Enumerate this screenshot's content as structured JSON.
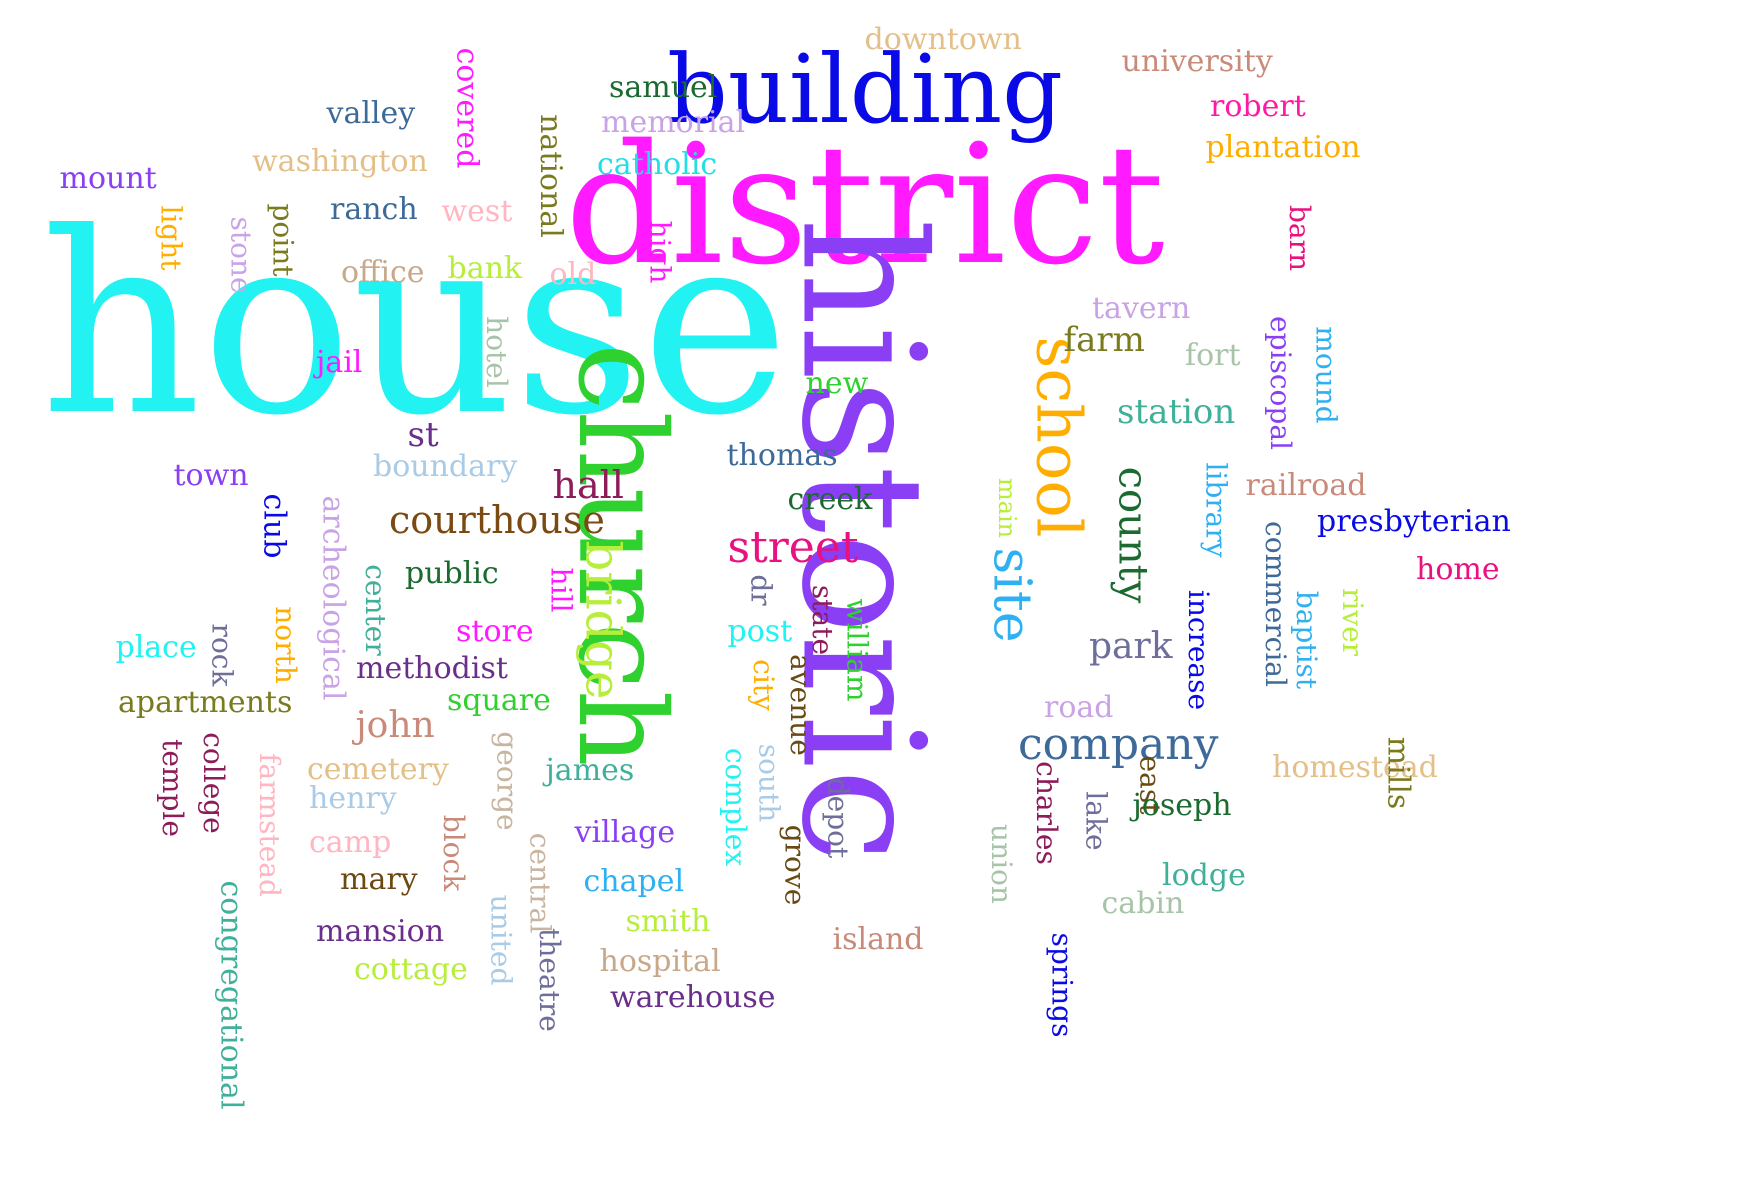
{
  "words": [
    {
      "text": "house",
      "color": "#22f2f2"
    },
    {
      "text": "district",
      "color": "#ff1aff"
    },
    {
      "text": "historic",
      "color": "#8a3ff5"
    },
    {
      "text": "building",
      "color": "#0a0ae6"
    },
    {
      "text": "church",
      "color": "#2fd12f"
    },
    {
      "text": "school",
      "color": "#ffae00"
    },
    {
      "text": "site",
      "color": "#2fb0f2"
    },
    {
      "text": "street",
      "color": "#e9117f"
    },
    {
      "text": "bridge",
      "color": "#b7ee3b"
    },
    {
      "text": "county",
      "color": "#1b6a2f"
    },
    {
      "text": "company",
      "color": "#3e6a99"
    },
    {
      "text": "courthouse",
      "color": "#7a4a12"
    },
    {
      "text": "hall",
      "color": "#8e1b5a"
    },
    {
      "text": "farm",
      "color": "#7a7a1e"
    },
    {
      "text": "station",
      "color": "#3fb09a"
    },
    {
      "text": "park",
      "color": "#6e6e9a"
    },
    {
      "text": "downtown",
      "color": "#e3c08a"
    },
    {
      "text": "university",
      "color": "#c98a7a"
    },
    {
      "text": "robert",
      "color": "#ff1aa6"
    },
    {
      "text": "plantation",
      "color": "#ffae00"
    },
    {
      "text": "samuel",
      "color": "#1b6a2f"
    },
    {
      "text": "memorial",
      "color": "#c9a3e6"
    },
    {
      "text": "catholic",
      "color": "#22dfe6"
    },
    {
      "text": "covered",
      "color": "#ff1aff"
    },
    {
      "text": "national",
      "color": "#7a7a1e"
    },
    {
      "text": "valley",
      "color": "#3e6a99"
    },
    {
      "text": "washington",
      "color": "#e3c08a"
    },
    {
      "text": "mount",
      "color": "#8a3ff5"
    },
    {
      "text": "light",
      "color": "#ffae00"
    },
    {
      "text": "stone",
      "color": "#c9a3e6"
    },
    {
      "text": "point",
      "color": "#7a7a1e"
    },
    {
      "text": "ranch",
      "color": "#3e6a99"
    },
    {
      "text": "west",
      "color": "#ffb6c1"
    },
    {
      "text": "office",
      "color": "#c9a88a"
    },
    {
      "text": "bank",
      "color": "#b7ee3b"
    },
    {
      "text": "old",
      "color": "#ffb6c1"
    },
    {
      "text": "high",
      "color": "#ff1aff"
    },
    {
      "text": "barn",
      "color": "#e9117f"
    },
    {
      "text": "tavern",
      "color": "#c9a3e6"
    },
    {
      "text": "fort",
      "color": "#a8c4a8"
    },
    {
      "text": "episcopal",
      "color": "#8a3ff5"
    },
    {
      "text": "mound",
      "color": "#2fb0f2"
    },
    {
      "text": "hotel",
      "color": "#a8c4a8"
    },
    {
      "text": "jail",
      "color": "#ff1aff"
    },
    {
      "text": "new",
      "color": "#2fd12f"
    },
    {
      "text": "st",
      "color": "#6a2f8a"
    },
    {
      "text": "boundary",
      "color": "#aacbe6"
    },
    {
      "text": "thomas",
      "color": "#3e6a99"
    },
    {
      "text": "library",
      "color": "#2fb0f2"
    },
    {
      "text": "railroad",
      "color": "#c98a7a"
    },
    {
      "text": "town",
      "color": "#8a3ff5"
    },
    {
      "text": "club",
      "color": "#0a0ae6"
    },
    {
      "text": "archeological",
      "color": "#c9a3e6"
    },
    {
      "text": "creek",
      "color": "#1b6a2f"
    },
    {
      "text": "main",
      "color": "#b7ee3b"
    },
    {
      "text": "commercial",
      "color": "#3e6a99"
    },
    {
      "text": "presbyterian",
      "color": "#0a0ae6"
    },
    {
      "text": "home",
      "color": "#e9117f"
    },
    {
      "text": "center",
      "color": "#3fb09a"
    },
    {
      "text": "public",
      "color": "#1b6a2f"
    },
    {
      "text": "hill",
      "color": "#ff1aff"
    },
    {
      "text": "dr",
      "color": "#6e6e9a"
    },
    {
      "text": "state",
      "color": "#8e1b5a"
    },
    {
      "text": "william",
      "color": "#2fd12f"
    },
    {
      "text": "increase",
      "color": "#0a0ae6"
    },
    {
      "text": "baptist",
      "color": "#2fb0f2"
    },
    {
      "text": "river",
      "color": "#b7ee3b"
    },
    {
      "text": "north",
      "color": "#ffae00"
    },
    {
      "text": "rock",
      "color": "#6e6e9a"
    },
    {
      "text": "place",
      "color": "#22f2f2"
    },
    {
      "text": "store",
      "color": "#ff1aff"
    },
    {
      "text": "post",
      "color": "#22f2f2"
    },
    {
      "text": "city",
      "color": "#ffae00"
    },
    {
      "text": "avenue",
      "color": "#6a4a12"
    },
    {
      "text": "methodist",
      "color": "#6a2f8a"
    },
    {
      "text": "apartments",
      "color": "#7a7a1e"
    },
    {
      "text": "square",
      "color": "#2fd12f"
    },
    {
      "text": "road",
      "color": "#c9a3e6"
    },
    {
      "text": "homestead",
      "color": "#e3c08a"
    },
    {
      "text": "mills",
      "color": "#7a7a1e"
    },
    {
      "text": "john",
      "color": "#c98a7a"
    },
    {
      "text": "george",
      "color": "#c9b4a0"
    },
    {
      "text": "south",
      "color": "#aacbe6"
    },
    {
      "text": "temple",
      "color": "#8e1b5a"
    },
    {
      "text": "college",
      "color": "#8e1b5a"
    },
    {
      "text": "farmstead",
      "color": "#ffb6c1"
    },
    {
      "text": "cemetery",
      "color": "#e3c08a"
    },
    {
      "text": "james",
      "color": "#3fb09a"
    },
    {
      "text": "depot",
      "color": "#6e6e9a"
    },
    {
      "text": "east",
      "color": "#6a4a12"
    },
    {
      "text": "joseph",
      "color": "#1b6a2f"
    },
    {
      "text": "henry",
      "color": "#aacbe6"
    },
    {
      "text": "complex",
      "color": "#22f2f2"
    },
    {
      "text": "charles",
      "color": "#8e1b5a"
    },
    {
      "text": "lake",
      "color": "#6e6e9a"
    },
    {
      "text": "camp",
      "color": "#ffb6c1"
    },
    {
      "text": "block",
      "color": "#c98a7a"
    },
    {
      "text": "village",
      "color": "#8a3ff5"
    },
    {
      "text": "central",
      "color": "#c9b4a0"
    },
    {
      "text": "grove",
      "color": "#6a4a12"
    },
    {
      "text": "mary",
      "color": "#6a4a12"
    },
    {
      "text": "chapel",
      "color": "#2fb0f2"
    },
    {
      "text": "lodge",
      "color": "#3fb09a"
    },
    {
      "text": "union",
      "color": "#a8c4a8"
    },
    {
      "text": "cabin",
      "color": "#a8c4a8"
    },
    {
      "text": "congregational",
      "color": "#3fb09a"
    },
    {
      "text": "united",
      "color": "#aacbe6"
    },
    {
      "text": "smith",
      "color": "#b7ee3b"
    },
    {
      "text": "mansion",
      "color": "#6a2f8a"
    },
    {
      "text": "island",
      "color": "#c98a7a"
    },
    {
      "text": "springs",
      "color": "#0a0ae6"
    },
    {
      "text": "theatre",
      "color": "#6e6e9a"
    },
    {
      "text": "hospital",
      "color": "#c9a88a"
    },
    {
      "text": "cottage",
      "color": "#b7ee3b"
    },
    {
      "text": "warehouse",
      "color": "#6a2f8a"
    }
  ]
}
